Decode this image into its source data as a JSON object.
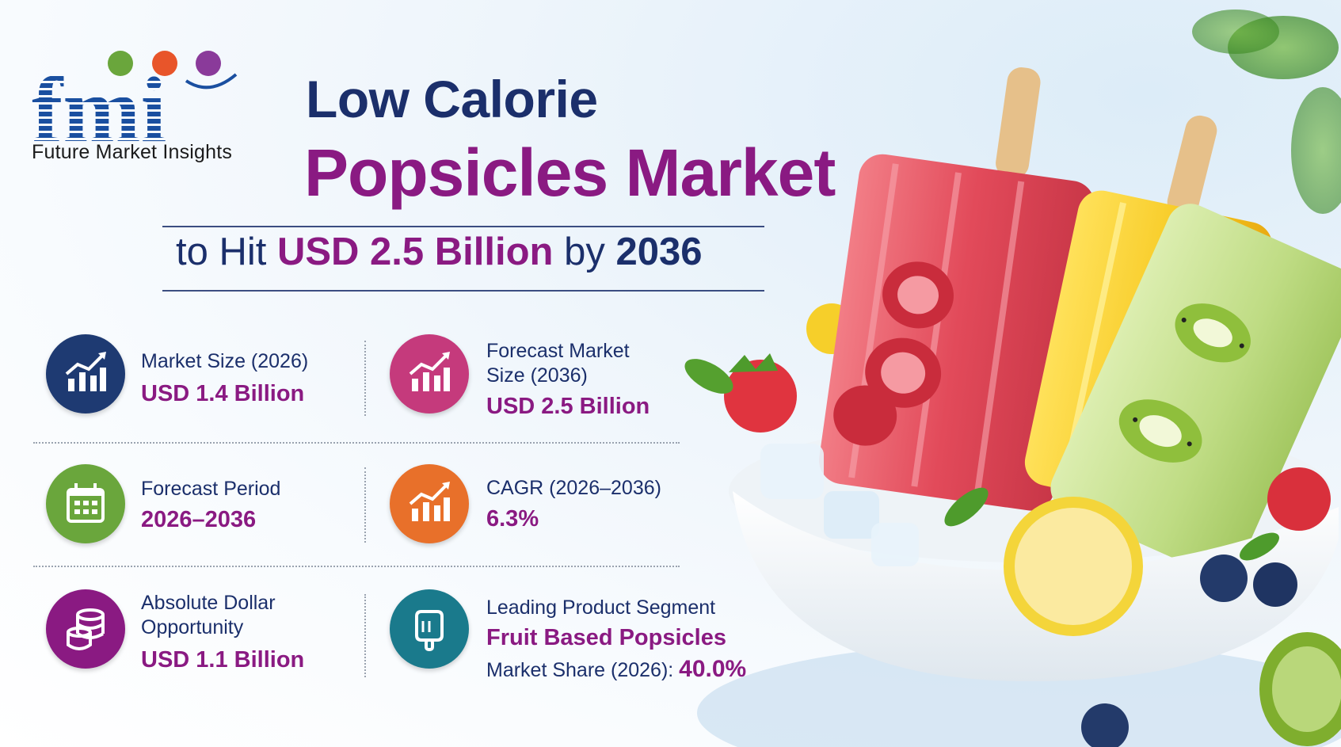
{
  "logo": {
    "wordmark": "fmi",
    "company_name": "Future Market Insights"
  },
  "title": {
    "line1": "Low Calorie",
    "line2": "Popsicles Market"
  },
  "subtitle": {
    "prefix": "to Hit ",
    "highlight": "USD 2.5 Billion",
    "middle": " by ",
    "year": "2036"
  },
  "stats": {
    "market_size": {
      "label": "Market Size (2026)",
      "value": "USD 1.4 Billion",
      "icon": "bar-chart-up-icon",
      "color": "#1e3a72"
    },
    "forecast_size": {
      "label_line1": "Forecast Market",
      "label_line2": "Size (2036)",
      "value": "USD 2.5 Billion",
      "icon": "bar-chart-up-icon",
      "color": "#c53a7c"
    },
    "forecast_period": {
      "label": "Forecast Period",
      "value": "2026–2036",
      "icon": "calendar-icon",
      "color": "#6aa63c"
    },
    "cagr": {
      "label": "CAGR (2026–2036)",
      "value": "6.3%",
      "icon": "bar-chart-up-icon",
      "color": "#e8702a"
    },
    "opportunity": {
      "label_line1": "Absolute Dollar",
      "label_line2": "Opportunity",
      "value": "USD 1.1 Billion",
      "icon": "coin-stack-icon",
      "color": "#8a1a82"
    },
    "segment": {
      "label": "Leading Product Segment",
      "value": "Fruit Based Popsicles",
      "share_label": "Market Share (2026): ",
      "share_value": "40.0%",
      "icon": "popsicle-icon",
      "color": "#1a7a8c"
    }
  },
  "colors": {
    "navy": "#1b2f6b",
    "purple": "#8a1a82",
    "strawberry": "#e24a5a",
    "lemon": "#f6d21e",
    "kiwi": "#b9d77a"
  }
}
